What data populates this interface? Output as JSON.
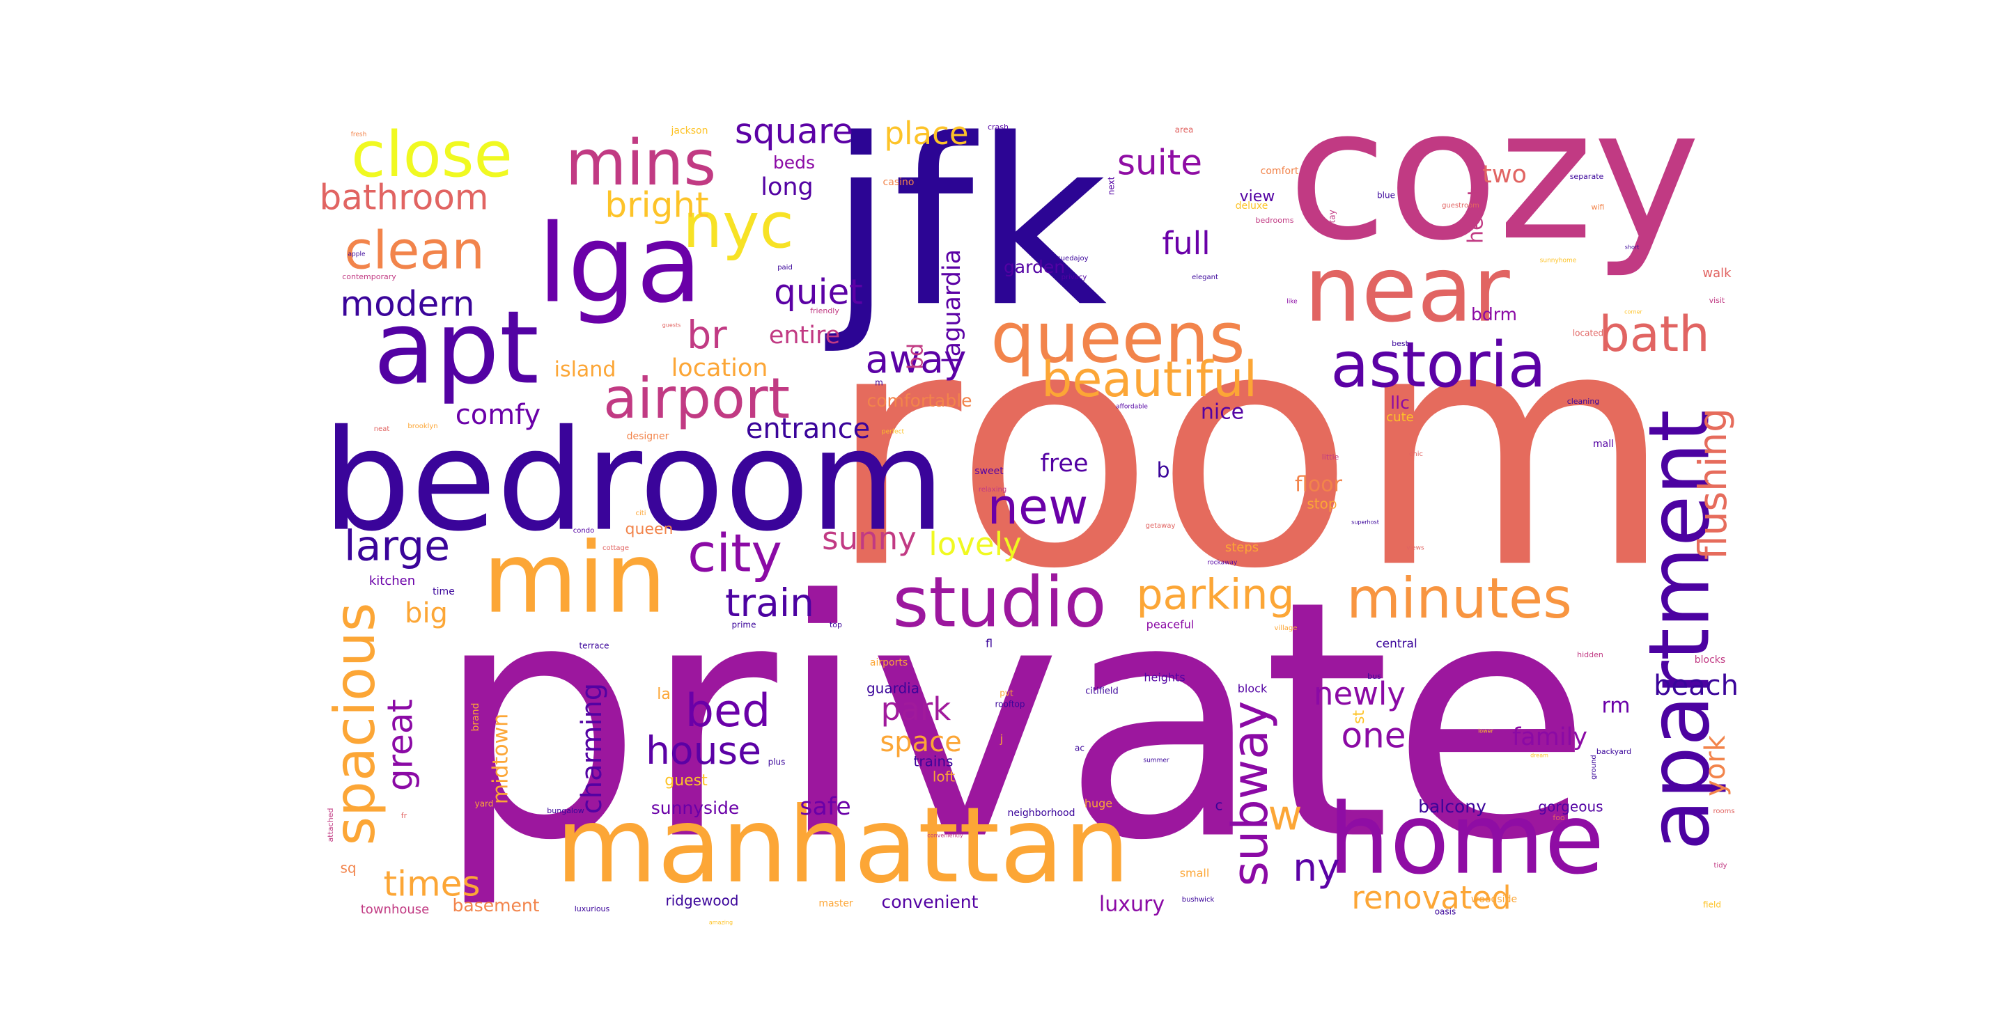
{
  "figure": {
    "type": "wordcloud",
    "background": "#ffffff",
    "palette": [
      "#2b0594",
      "#6a00a8",
      "#9c179e",
      "#c13a83",
      "#e16462",
      "#f2844b",
      "#fca636",
      "#f0f921"
    ]
  },
  "words": [
    {
      "text": "room",
      "color": "#e56b5d"
    },
    {
      "text": "private",
      "color": "#9c179e"
    },
    {
      "text": "jfk",
      "color": "#2c0594"
    },
    {
      "text": "cozy",
      "color": "#c13a83"
    },
    {
      "text": "bedroom",
      "color": "#3a049a"
    },
    {
      "text": "manhattan",
      "color": "#fca636"
    },
    {
      "text": "apartment",
      "color": "#4c02a1"
    },
    {
      "text": "home",
      "color": "#8f0da4"
    },
    {
      "text": "lga",
      "color": "#6a00a8"
    },
    {
      "text": "near",
      "color": "#e16462"
    },
    {
      "text": "apt",
      "color": "#5302a3"
    },
    {
      "text": "min",
      "color": "#fca636"
    },
    {
      "text": "studio",
      "color": "#9c179e"
    },
    {
      "text": "queens",
      "color": "#f2844b"
    },
    {
      "text": "astoria",
      "color": "#5b01a5"
    },
    {
      "text": "close",
      "color": "#f0f921"
    },
    {
      "text": "mins",
      "color": "#c13a83"
    },
    {
      "text": "nyc",
      "color": "#f7e225"
    },
    {
      "text": "minutes",
      "color": "#f89540"
    },
    {
      "text": "spacious",
      "color": "#fca636"
    },
    {
      "text": "airport",
      "color": "#c13a83"
    },
    {
      "text": "clean",
      "color": "#f2844b"
    },
    {
      "text": "bath",
      "color": "#e16462"
    },
    {
      "text": "beautiful",
      "color": "#fca636"
    },
    {
      "text": "city",
      "color": "#8b0aa5"
    },
    {
      "text": "subway",
      "color": "#8b0aa5"
    },
    {
      "text": "new",
      "color": "#6a00a8"
    },
    {
      "text": "parking",
      "color": "#fca636"
    },
    {
      "text": "bed",
      "color": "#6a00a8"
    },
    {
      "text": "flushing",
      "color": "#e66c5c"
    },
    {
      "text": "modern",
      "color": "#3a049a"
    },
    {
      "text": "suite",
      "color": "#8f0da4"
    },
    {
      "text": "square",
      "color": "#5b01a5"
    },
    {
      "text": "quiet",
      "color": "#5b01a5"
    },
    {
      "text": "bright",
      "color": "#fdc328"
    },
    {
      "text": "bathroom",
      "color": "#e16462"
    },
    {
      "text": "large",
      "color": "#3a049a"
    },
    {
      "text": "train",
      "color": "#4c02a1"
    },
    {
      "text": "times",
      "color": "#fca636"
    },
    {
      "text": "house",
      "color": "#5b01a5"
    },
    {
      "text": "away",
      "color": "#5b01a5"
    },
    {
      "text": "great",
      "color": "#8b0aa5"
    },
    {
      "text": "one",
      "color": "#8b0aa5"
    },
    {
      "text": "ny",
      "color": "#5b01a5"
    },
    {
      "text": "w",
      "color": "#fca636"
    },
    {
      "text": "newly",
      "color": "#8b0aa5"
    },
    {
      "text": "renovated",
      "color": "#fca636"
    },
    {
      "text": "sunny",
      "color": "#c13a83"
    },
    {
      "text": "lovely",
      "color": "#f0f921"
    },
    {
      "text": "br",
      "color": "#c13a83"
    },
    {
      "text": "full",
      "color": "#6a00a8"
    },
    {
      "text": "comfy",
      "color": "#6a00a8"
    },
    {
      "text": "park",
      "color": "#a01a9c"
    },
    {
      "text": "space",
      "color": "#fca636"
    },
    {
      "text": "charming",
      "color": "#5302a3"
    },
    {
      "text": "york",
      "color": "#f2844b"
    },
    {
      "text": "beach",
      "color": "#3a049a"
    },
    {
      "text": "big",
      "color": "#fca636"
    },
    {
      "text": "entrance",
      "color": "#3a049a"
    },
    {
      "text": "location",
      "color": "#fca636"
    },
    {
      "text": "place",
      "color": "#fdc328"
    },
    {
      "text": "island",
      "color": "#fca636"
    },
    {
      "text": "laguardia",
      "color": "#5b01a5"
    },
    {
      "text": "entire",
      "color": "#c13a83"
    },
    {
      "text": "long",
      "color": "#5302a3"
    },
    {
      "text": "heart",
      "color": "#c13a83"
    },
    {
      "text": "free",
      "color": "#5302a3"
    },
    {
      "text": "family",
      "color": "#8b0aa5"
    },
    {
      "text": "midtown",
      "color": "#fca636"
    },
    {
      "text": "two",
      "color": "#e16462"
    },
    {
      "text": "floor",
      "color": "#f2844b"
    },
    {
      "text": "nice",
      "color": "#5302a3"
    },
    {
      "text": "safe",
      "color": "#6a00a8"
    },
    {
      "text": "rm",
      "color": "#6a00a8"
    },
    {
      "text": "bd",
      "color": "#c13a83"
    },
    {
      "text": "b",
      "color": "#3a049a"
    },
    {
      "text": "bdrm",
      "color": "#8b0aa5"
    },
    {
      "text": "llc",
      "color": "#8b0aa5"
    },
    {
      "text": "garden",
      "color": "#5302a3"
    },
    {
      "text": "sunnyside",
      "color": "#6a00a8"
    },
    {
      "text": "basement",
      "color": "#f2844b"
    },
    {
      "text": "balcony",
      "color": "#3a049a"
    },
    {
      "text": "comfortable",
      "color": "#f2844b"
    },
    {
      "text": "convenient",
      "color": "#5302a3"
    },
    {
      "text": "luxury",
      "color": "#8b0aa5"
    },
    {
      "text": "queen",
      "color": "#f2844b"
    },
    {
      "text": "beds",
      "color": "#8b0aa5"
    },
    {
      "text": "view",
      "color": "#5302a3"
    },
    {
      "text": "stop",
      "color": "#fca636"
    },
    {
      "text": "gorgeous",
      "color": "#5302a3"
    },
    {
      "text": "guest",
      "color": "#fdc328"
    },
    {
      "text": "la",
      "color": "#fca636"
    },
    {
      "text": "guardia",
      "color": "#3a049a"
    },
    {
      "text": "trains",
      "color": "#3a049a"
    },
    {
      "text": "loft",
      "color": "#fca636"
    },
    {
      "text": "ridgewood",
      "color": "#3a049a"
    },
    {
      "text": "st",
      "color": "#fdc328"
    },
    {
      "text": "sq",
      "color": "#f2844b"
    },
    {
      "text": "townhouse",
      "color": "#c13a83"
    },
    {
      "text": "kitchen",
      "color": "#6a00a8"
    },
    {
      "text": "time",
      "color": "#3a049a"
    },
    {
      "text": "cute",
      "color": "#fdc328"
    },
    {
      "text": "walk",
      "color": "#e16462"
    },
    {
      "text": "heights",
      "color": "#5302a3"
    },
    {
      "text": "block",
      "color": "#5302a3"
    },
    {
      "text": "central",
      "color": "#3a049a"
    },
    {
      "text": "peaceful",
      "color": "#8b0aa5"
    },
    {
      "text": "steps",
      "color": "#fca636"
    },
    {
      "text": "huge",
      "color": "#fca636"
    },
    {
      "text": "c",
      "color": "#3a049a"
    },
    {
      "text": "small",
      "color": "#fca636"
    },
    {
      "text": "blocks",
      "color": "#c13a83"
    },
    {
      "text": "mall",
      "color": "#5302a3"
    },
    {
      "text": "jackson",
      "color": "#fdc328"
    },
    {
      "text": "casino",
      "color": "#f2844b"
    },
    {
      "text": "comfort",
      "color": "#f2844b"
    },
    {
      "text": "area",
      "color": "#e16462"
    },
    {
      "text": "crash",
      "color": "#5302a3"
    },
    {
      "text": "next",
      "color": "#5302a3"
    },
    {
      "text": "separate",
      "color": "#3a049a"
    },
    {
      "text": "wifi",
      "color": "#f2844b"
    },
    {
      "text": "blue",
      "color": "#3a049a"
    },
    {
      "text": "bedrooms",
      "color": "#c13a83"
    },
    {
      "text": "deluxe",
      "color": "#fdc328"
    },
    {
      "text": "stay",
      "color": "#c13a83"
    },
    {
      "text": "suedajoy",
      "color": "#3a049a"
    },
    {
      "text": "privacy",
      "color": "#5302a3"
    },
    {
      "text": "elegant",
      "color": "#3a049a"
    },
    {
      "text": "paid",
      "color": "#3a049a"
    },
    {
      "text": "friendly",
      "color": "#c13a83"
    },
    {
      "text": "guests",
      "color": "#e16462"
    },
    {
      "text": "contemporary",
      "color": "#c13a83"
    },
    {
      "text": "apple",
      "color": "#3a049a"
    },
    {
      "text": "fresh",
      "color": "#f2844b"
    },
    {
      "text": "like",
      "color": "#8b0aa5"
    },
    {
      "text": "best",
      "color": "#3a049a"
    },
    {
      "text": "located",
      "color": "#e16462"
    },
    {
      "text": "visit",
      "color": "#c13a83"
    },
    {
      "text": "short",
      "color": "#3a049a"
    },
    {
      "text": "cleaning",
      "color": "#3a049a"
    },
    {
      "text": "affordable",
      "color": "#5302a3"
    },
    {
      "text": "perfect",
      "color": "#fdc328"
    },
    {
      "text": "designer",
      "color": "#f2844b"
    },
    {
      "text": "brooklyn",
      "color": "#fca636"
    },
    {
      "text": "neat",
      "color": "#e16462"
    },
    {
      "text": "chic",
      "color": "#e16462"
    },
    {
      "text": "little",
      "color": "#c13a83"
    },
    {
      "text": "sweet",
      "color": "#5302a3"
    },
    {
      "text": "relaxing",
      "color": "#c13a83"
    },
    {
      "text": "citi",
      "color": "#fca636"
    },
    {
      "text": "condo",
      "color": "#5302a3"
    },
    {
      "text": "cottage",
      "color": "#e16462"
    },
    {
      "text": "getaway",
      "color": "#e16462"
    },
    {
      "text": "rockaway",
      "color": "#5302a3"
    },
    {
      "text": "superhost",
      "color": "#3a049a"
    },
    {
      "text": "views",
      "color": "#e16462"
    },
    {
      "text": "terrace",
      "color": "#3a049a"
    },
    {
      "text": "prime",
      "color": "#3a049a"
    },
    {
      "text": "top",
      "color": "#3a049a"
    },
    {
      "text": "airports",
      "color": "#fca636"
    },
    {
      "text": "fl",
      "color": "#3a049a"
    },
    {
      "text": "village",
      "color": "#fca636"
    },
    {
      "text": "pvt",
      "color": "#fca636"
    },
    {
      "text": "citifield",
      "color": "#3a049a"
    },
    {
      "text": "rooftop",
      "color": "#3a049a"
    },
    {
      "text": "bus",
      "color": "#3a049a"
    },
    {
      "text": "hidden",
      "color": "#c13a83"
    },
    {
      "text": "brand",
      "color": "#fca636"
    },
    {
      "text": "plus",
      "color": "#3a049a"
    },
    {
      "text": "ac",
      "color": "#3a049a"
    },
    {
      "text": "summer",
      "color": "#3a049a"
    },
    {
      "text": "backyard",
      "color": "#3a049a"
    },
    {
      "text": "ground",
      "color": "#3a049a"
    },
    {
      "text": "yard",
      "color": "#fca636"
    },
    {
      "text": "bungalow",
      "color": "#3a049a"
    },
    {
      "text": "neighborhood",
      "color": "#3a049a"
    },
    {
      "text": "attached",
      "color": "#c13a83"
    },
    {
      "text": "fr",
      "color": "#e16462"
    },
    {
      "text": "conveniently",
      "color": "#c13a83"
    },
    {
      "text": "rooms",
      "color": "#e16462"
    },
    {
      "text": "bushwick",
      "color": "#3a049a"
    },
    {
      "text": "luxurious",
      "color": "#3a049a"
    },
    {
      "text": "master",
      "color": "#fca636"
    },
    {
      "text": "amazing",
      "color": "#fdc328"
    },
    {
      "text": "woodside",
      "color": "#fca636"
    },
    {
      "text": "oasis",
      "color": "#3a049a"
    },
    {
      "text": "field",
      "color": "#fdc328"
    },
    {
      "text": "tidy",
      "color": "#c13a83"
    },
    {
      "text": "foo",
      "color": "#e16462"
    },
    {
      "text": "m",
      "color": "#3a049a"
    },
    {
      "text": "j",
      "color": "#fca636"
    },
    {
      "text": "guestroom",
      "color": "#e16462"
    },
    {
      "text": "sunnyhome",
      "color": "#fdc328"
    },
    {
      "text": "lower",
      "color": "#fdc328"
    },
    {
      "text": "corner",
      "color": "#fdc328"
    },
    {
      "text": "dream",
      "color": "#fdc328"
    }
  ]
}
